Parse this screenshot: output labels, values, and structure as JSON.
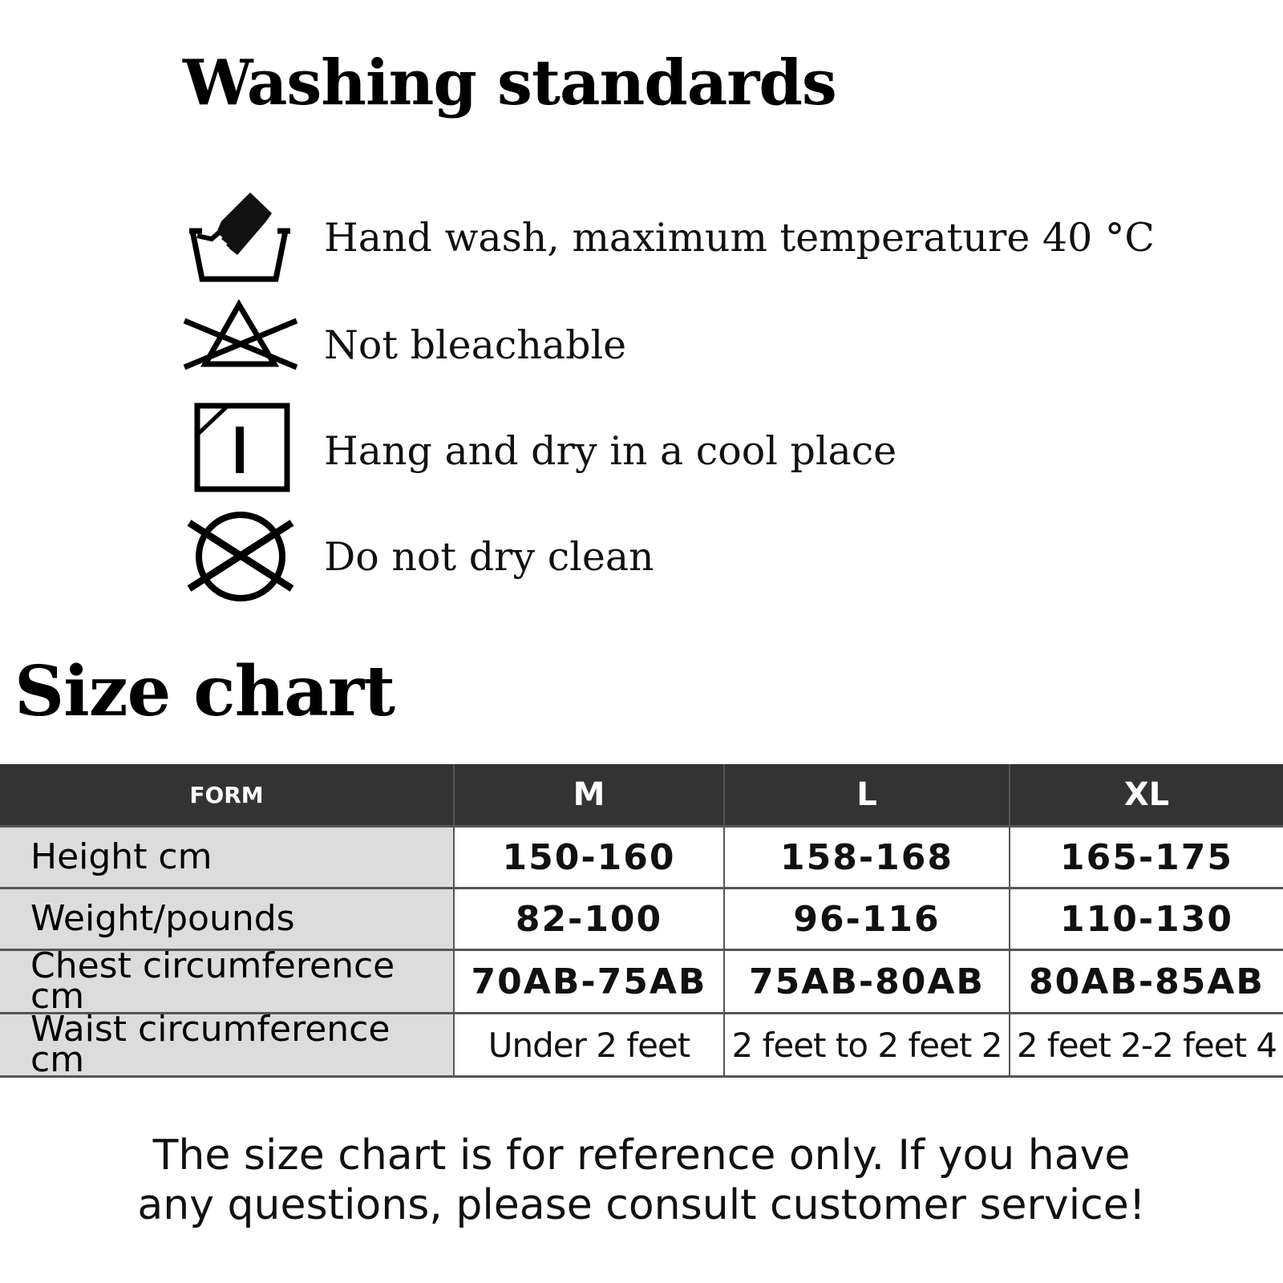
{
  "washing": {
    "title": "Washing standards",
    "items": [
      {
        "icon": "hand-wash-icon",
        "label": "Hand wash, maximum temperature 40 °C"
      },
      {
        "icon": "no-bleach-icon",
        "label": "Not bleachable"
      },
      {
        "icon": "hang-dry-shade-icon",
        "label": "Hang and dry in a cool place"
      },
      {
        "icon": "no-dry-clean-icon",
        "label": "Do not dry clean"
      }
    ]
  },
  "size_chart": {
    "title": "Size chart",
    "headers": [
      "FORM",
      "M",
      "L",
      "XL"
    ],
    "rows": [
      {
        "label": "Height cm",
        "values": [
          "150-160",
          "158-168",
          "165-175"
        ]
      },
      {
        "label": "Weight/pounds",
        "values": [
          "82-100",
          "96-116",
          "110-130"
        ]
      },
      {
        "label": "Chest circumference cm",
        "values": [
          "70AB-75AB",
          "75AB-80AB",
          "80AB-85AB"
        ]
      },
      {
        "label": "Waist circumference cm",
        "values": [
          "Under 2 feet",
          "2 feet to 2 feet 2",
          "2 feet 2-2 feet 4"
        ]
      }
    ],
    "colors": {
      "header_bg": "#333333",
      "label_bg": "#dcdcdc"
    }
  },
  "note": {
    "line1": "The size chart is for reference only. If you have",
    "line2": "any questions, please consult customer service!"
  }
}
